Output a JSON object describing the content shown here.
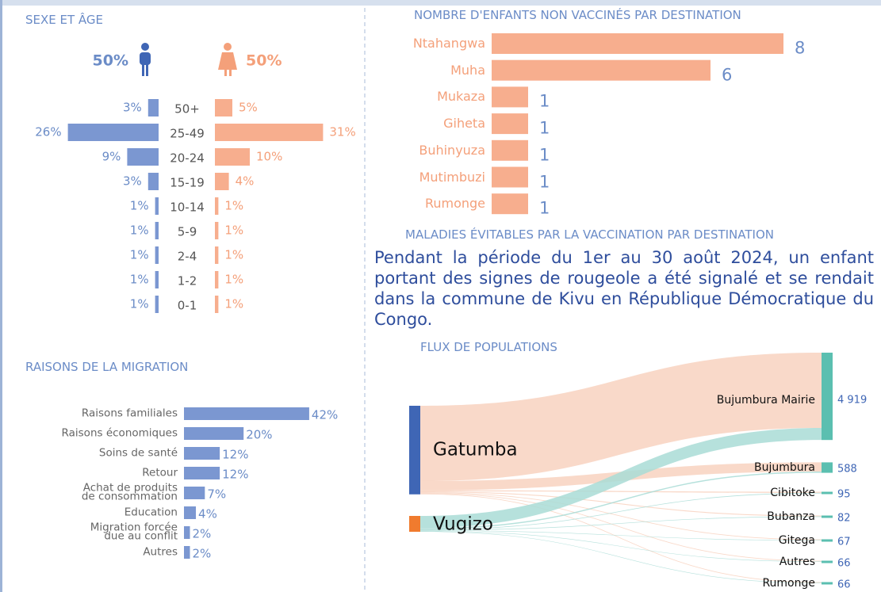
{
  "chart_data": [
    {
      "type": "pyramid",
      "title": "SEXE ET ÂGE",
      "categories": [
        "50+",
        "25-49",
        "20-24",
        "15-19",
        "10-14",
        "5-9",
        "2-4",
        "1-2",
        "0-1"
      ],
      "series": [
        {
          "color": "#7b97d1",
          "values": [
            3,
            26,
            9,
            3,
            1,
            1,
            1,
            1,
            1
          ],
          "value_labels": [
            "3%",
            "26%",
            "9%",
            "3%",
            "1%",
            "1%",
            "1%",
            "1%",
            "1%"
          ],
          "total": 50,
          "total_label": "50%"
        },
        {
          "color": "#f7ae8e",
          "values": [
            5,
            31,
            10,
            4,
            1,
            1,
            1,
            1,
            1
          ],
          "value_labels": [
            "5%",
            "31%",
            "10%",
            "4%",
            "1%",
            "1%",
            "1%",
            "1%",
            "1%"
          ],
          "total": 50,
          "total_label": "50%"
        }
      ]
    },
    {
      "type": "barh",
      "title": "NOMBRE D'ENFANTS NON VACCINÉS PAR DESTINATION",
      "categories": [
        "Ntahangwa",
        "Muha",
        "Mukaza",
        "Giheta",
        "Buhinyuza",
        "Mutimbuzi",
        "Rumonge"
      ],
      "values": [
        8,
        6,
        1,
        1,
        1,
        1,
        1
      ],
      "color": "#f7ae8e"
    },
    {
      "type": "barh",
      "title": "RAISONS DE LA MIGRATION",
      "categories": [
        "Raisons familiales",
        "Raisons économiques",
        "Soins de santé",
        "Retour",
        "Achat de produits\nde consommation",
        "Education",
        "Migration forcée\ndue au conflit",
        "Autres"
      ],
      "values": [
        42,
        20,
        12,
        12,
        7,
        4,
        2,
        2
      ],
      "value_labels": [
        "42%",
        "20%",
        "12%",
        "12%",
        "7%",
        "4%",
        "2%",
        "2%"
      ],
      "color": "#7b97d1"
    },
    {
      "type": "sankey",
      "title": "FLUX DE POPULATIONS",
      "nodes": [
        {
          "name": "Gatumba",
          "color": "#3f66b5",
          "link_color": "#f8d2c0"
        },
        {
          "name": "Vugizo",
          "color": "#f07b2e",
          "link_color": "#a9dcd6"
        },
        {
          "name": "Bujumbura Mairie",
          "color": "#5bbfb0",
          "value": 4919,
          "value_label": "4 919"
        },
        {
          "name": "Bujumbura",
          "color": "#5bbfb0",
          "value": 588
        },
        {
          "name": "Cibitoke",
          "color": "#5bbfb0",
          "value": 95
        },
        {
          "name": "Bubanza",
          "color": "#5bbfb0",
          "value": 82
        },
        {
          "name": "Gitega",
          "color": "#5bbfb0",
          "value": 67
        },
        {
          "name": "Autres",
          "color": "#5bbfb0",
          "value": 66
        },
        {
          "name": "Rumonge",
          "color": "#5bbfb0",
          "value": 66
        }
      ],
      "links": [
        {
          "source": 0,
          "target": 2,
          "value": 4240
        },
        {
          "source": 0,
          "target": 3,
          "value": 520
        },
        {
          "source": 0,
          "target": 4,
          "value": 60
        },
        {
          "source": 0,
          "target": 5,
          "value": 50
        },
        {
          "source": 0,
          "target": 6,
          "value": 40
        },
        {
          "source": 0,
          "target": 7,
          "value": 40
        },
        {
          "source": 0,
          "target": 8,
          "value": 40
        },
        {
          "source": 1,
          "target": 2,
          "value": 679
        },
        {
          "source": 1,
          "target": 3,
          "value": 68
        },
        {
          "source": 1,
          "target": 4,
          "value": 35
        },
        {
          "source": 1,
          "target": 5,
          "value": 32
        },
        {
          "source": 1,
          "target": 6,
          "value": 27
        },
        {
          "source": 1,
          "target": 7,
          "value": 26
        },
        {
          "source": 1,
          "target": 8,
          "value": 26
        }
      ]
    }
  ],
  "section": {
    "title": "MALADIES ÉVITABLES PAR LA VACCINATION PAR DESTINATION",
    "text": "Pendant la période du 1er au 30 août 2024, un enfant portant des signes de rougeole a été signalé et se rendait dans la commune de Kivu en République Démocratique du Congo."
  }
}
